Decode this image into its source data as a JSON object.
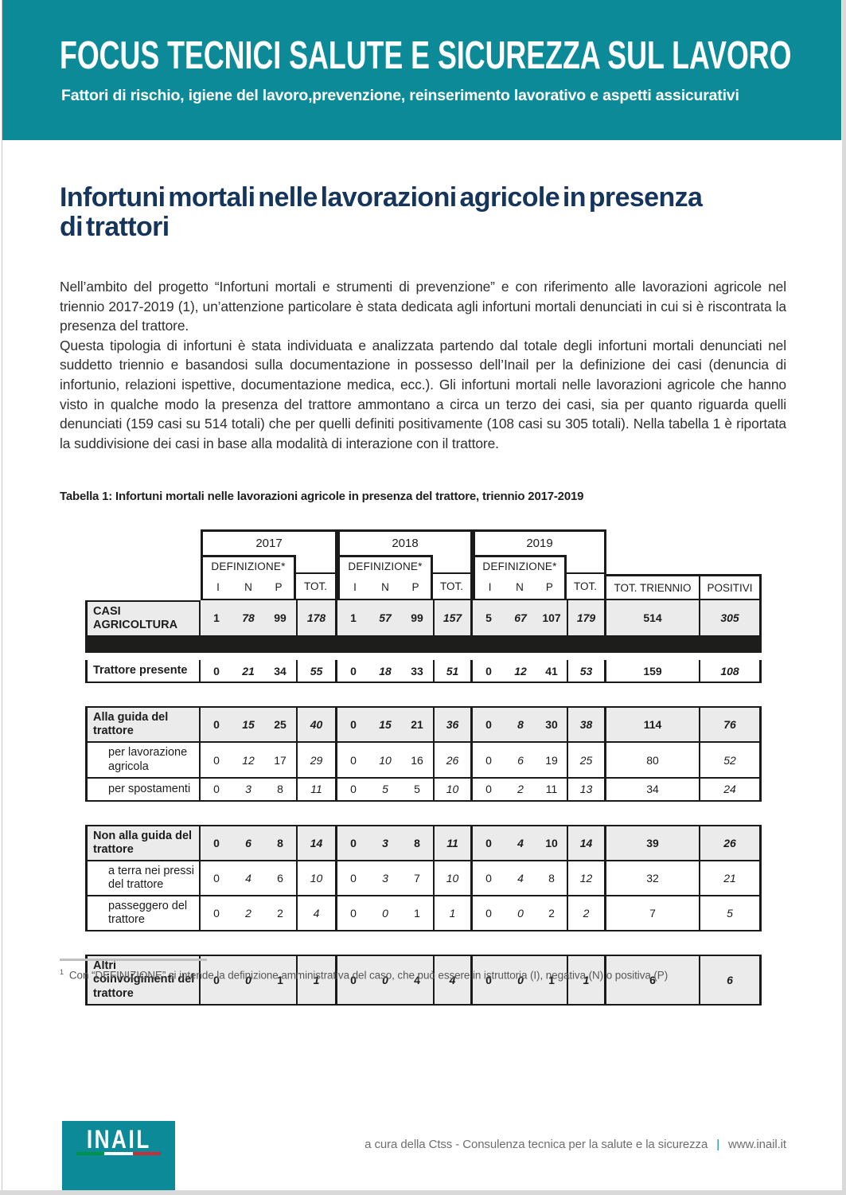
{
  "banner": {
    "title": "FOCUS TECNICI SALUTE E SICUREZZA SUL LAVORO",
    "subtitle": "Fattori di rischio, igiene del lavoro,prevenzione, reinserimento lavorativo e aspetti assicurativi"
  },
  "article": {
    "title": "Infortuni mortali nelle lavorazioni agricole in presenza di trattori",
    "title_lines": [
      "Infortuni mortali nelle lavorazioni agricole in presenza",
      "di trattori"
    ],
    "paragraphs": [
      "Nell’ambito del progetto “Infortuni mortali e strumenti di prevenzione” e con riferimento alle lavorazioni agricole nel triennio 2017-2019 (1), un’attenzione particolare è stata dedicata agli infortuni mortali denunciati in cui si è riscontrata la presenza del trattore.",
      "Questa tipologia di infortuni è stata individuata e analizzata partendo dal totale degli infortuni mortali denunciati nel suddetto triennio e basandosi sulla documentazione in possesso dell’Inail per la definizione dei casi (denuncia di infortunio, relazioni ispettive, documentazione medica, ecc.). Gli infortuni mortali nelle lavorazioni agricole che hanno visto in qualche modo la presenza del trattore ammontano a circa un terzo dei casi, sia per quanto riguarda quelli denunciati (159 casi su 514 totali) che per quelli definiti positivamente (108 casi su 305 totali). Nella tabella 1 è riportata la suddivisione dei casi in base alla modalità di interazione con il trattore."
    ]
  },
  "table": {
    "caption": "Tabella 1: Infortuni mortali nelle lavorazioni agricole in presenza del trattore, triennio 2017-2019",
    "header": {
      "years": [
        "2017",
        "2018",
        "2019"
      ],
      "definizione": "DEFINIZIONE*",
      "sub_cols": [
        "I",
        "N",
        "P"
      ],
      "tot": "TOT.",
      "tot_triennio": "TOT. TRIENNIO",
      "positivi": "POSITIVI"
    },
    "rows": [
      {
        "kind": "data",
        "label": "CASI AGRICOLTURA",
        "strong": true,
        "shaded": true,
        "values": [
          "1",
          "78",
          "99",
          "178",
          "1",
          "57",
          "99",
          "157",
          "5",
          "67",
          "107",
          "179",
          "514",
          "305"
        ]
      },
      {
        "kind": "band"
      },
      {
        "kind": "data",
        "label": "Trattore presente",
        "strong": true,
        "shaded": false,
        "values": [
          "0",
          "21",
          "34",
          "55",
          "0",
          "18",
          "33",
          "51",
          "0",
          "12",
          "41",
          "53",
          "159",
          "108"
        ]
      },
      {
        "kind": "gap"
      },
      {
        "kind": "data",
        "label": "Alla guida del trattore",
        "strong": true,
        "shaded": true,
        "values": [
          "0",
          "15",
          "25",
          "40",
          "0",
          "15",
          "21",
          "36",
          "0",
          "8",
          "30",
          "38",
          "114",
          "76"
        ]
      },
      {
        "kind": "data",
        "label": "per lavorazione agricola",
        "strong": false,
        "shaded": false,
        "indent": true,
        "values": [
          "0",
          "12",
          "17",
          "29",
          "0",
          "10",
          "16",
          "26",
          "0",
          "6",
          "19",
          "25",
          "80",
          "52"
        ]
      },
      {
        "kind": "data",
        "label": "per spostamenti",
        "strong": false,
        "shaded": false,
        "indent": true,
        "values": [
          "0",
          "3",
          "8",
          "11",
          "0",
          "5",
          "5",
          "10",
          "0",
          "2",
          "11",
          "13",
          "34",
          "24"
        ]
      },
      {
        "kind": "gap"
      },
      {
        "kind": "data",
        "label": "Non alla guida del trattore",
        "strong": true,
        "shaded": true,
        "values": [
          "0",
          "6",
          "8",
          "14",
          "0",
          "3",
          "8",
          "11",
          "0",
          "4",
          "10",
          "14",
          "39",
          "26"
        ]
      },
      {
        "kind": "data",
        "label": "a terra nei pressi del trattore",
        "strong": false,
        "shaded": false,
        "indent": true,
        "values": [
          "0",
          "4",
          "6",
          "10",
          "0",
          "3",
          "7",
          "10",
          "0",
          "4",
          "8",
          "12",
          "32",
          "21"
        ]
      },
      {
        "kind": "data",
        "label": "passeggero del trattore",
        "strong": false,
        "shaded": false,
        "indent": true,
        "values": [
          "0",
          "2",
          "2",
          "4",
          "0",
          "0",
          "1",
          "1",
          "0",
          "0",
          "2",
          "2",
          "7",
          "5"
        ]
      },
      {
        "kind": "gap"
      },
      {
        "kind": "data",
        "label": "Altri coinvolgimenti del trattore",
        "strong": true,
        "shaded": true,
        "values": [
          "0",
          "0",
          "1",
          "1",
          "0",
          "0",
          "4",
          "4",
          "0",
          "0",
          "1",
          "1",
          "6",
          "6"
        ]
      }
    ]
  },
  "footnote": {
    "marker": "1",
    "text": "Con “DEFINIZIONE” si intende la definizione amministrativa del caso, che può essere in istruttoria (I), negativa (N) o positiva (P)"
  },
  "footer": {
    "logo_text": "INAIL",
    "credit": "a cura della Ctss - Consulenza tecnica per la salute e la sicurezza",
    "separator": "|",
    "site": "www.inail.it"
  },
  "colors": {
    "teal": "#0d8a97",
    "navy_title": "#16355d",
    "table_shade": "#ebebeb",
    "table_band": "#1d1d1b",
    "tricolor_green": "#009246",
    "tricolor_red": "#ce2b37"
  }
}
